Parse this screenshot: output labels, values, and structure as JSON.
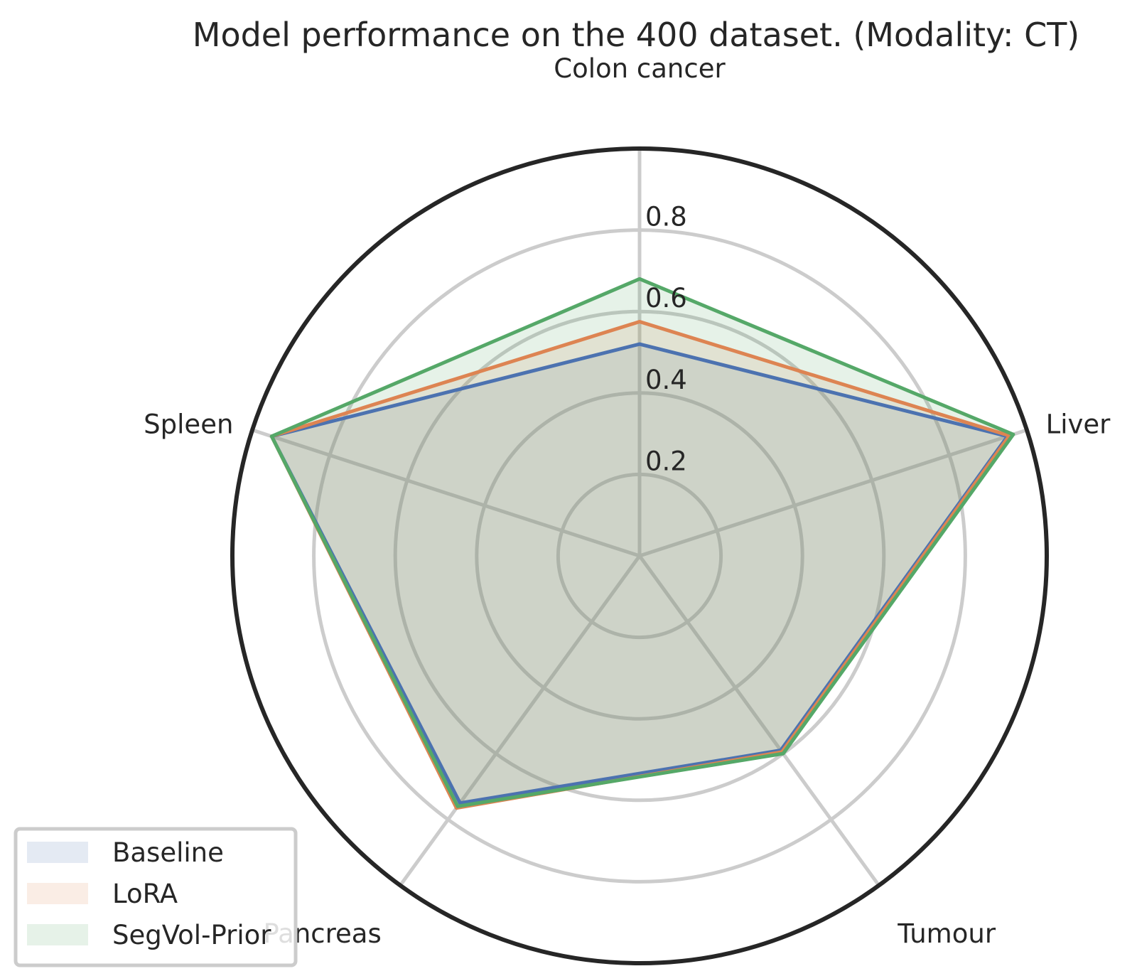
{
  "chart_data": {
    "type": "radar",
    "title": "Model performance on the 400 dataset. (Modality: CT)",
    "categories": [
      "Colon cancer",
      "Liver",
      "Tumour",
      "Pancreas",
      "Spleen"
    ],
    "rlim": [
      0,
      1.0
    ],
    "rticks": [
      0.2,
      0.4,
      0.6,
      0.8
    ],
    "rtick_labels": [
      "0.2",
      "0.4",
      "0.6",
      "0.8"
    ],
    "series": [
      {
        "name": "Baseline",
        "color": "#4c72b0",
        "values": [
          0.52,
          0.95,
          0.59,
          0.75,
          0.95
        ]
      },
      {
        "name": "LoRA",
        "color": "#dd8452",
        "values": [
          0.575,
          0.955,
          0.595,
          0.765,
          0.95
        ]
      },
      {
        "name": "SegVol-Prior",
        "color": "#55a868",
        "values": [
          0.68,
          0.965,
          0.6,
          0.76,
          0.95
        ]
      }
    ],
    "legend_position": "lower-left",
    "grid": true
  }
}
